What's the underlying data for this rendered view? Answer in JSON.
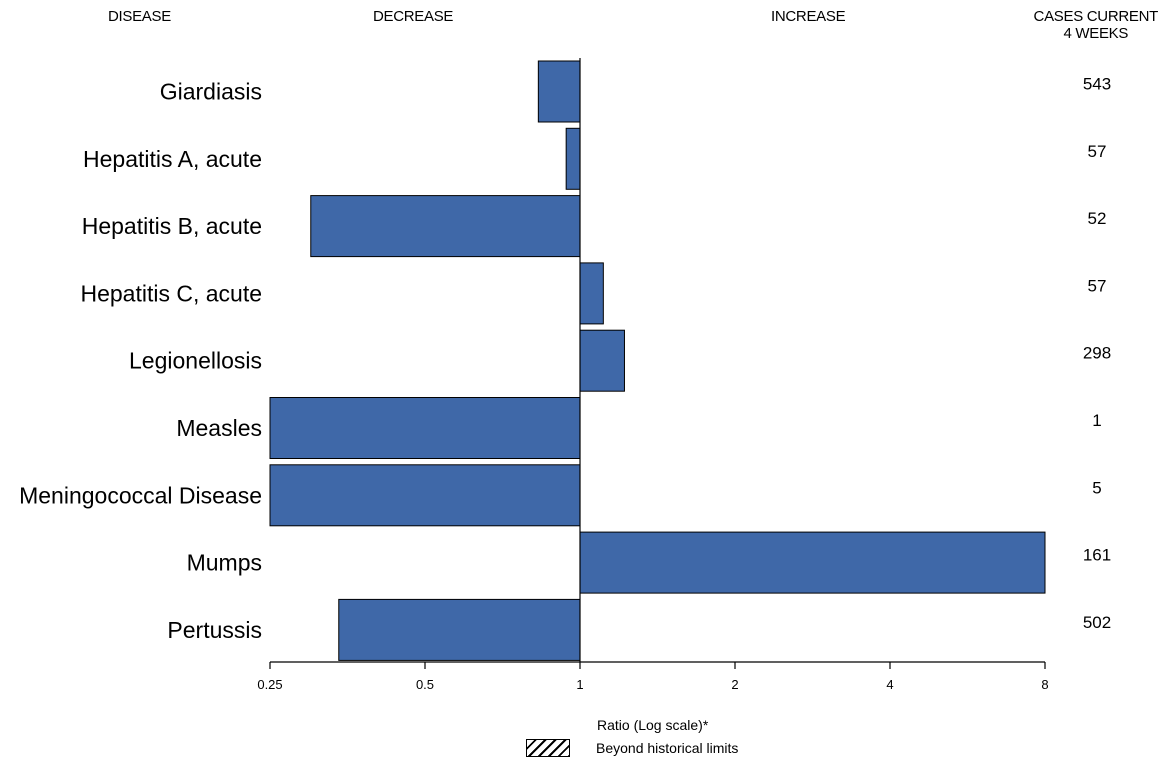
{
  "headers": {
    "disease": "DISEASE",
    "decrease": "DECREASE",
    "increase": "INCREASE",
    "cases_line1": "CASES CURRENT",
    "cases_line2": "4 WEEKS"
  },
  "chart_data": {
    "type": "bar",
    "orientation": "horizontal",
    "scale": "log",
    "baseline": 1,
    "xlim": [
      0.25,
      8
    ],
    "ticks": [
      0.25,
      0.5,
      1,
      2,
      4,
      8
    ],
    "tick_labels": [
      "0.25",
      "0.5",
      "1",
      "2",
      "4",
      "8"
    ],
    "xlabel": "Ratio (Log scale)*",
    "bar_color": "#3f68a8",
    "categories": [
      "Giardiasis",
      "Hepatitis A, acute",
      "Hepatitis B, acute",
      "Hepatitis C, acute",
      "Legionellosis",
      "Measles",
      "Meningococcal Disease",
      "Mumps",
      "Pertussis"
    ],
    "values": [
      0.83,
      0.94,
      0.3,
      1.11,
      1.22,
      0.25,
      0.25,
      8.0,
      0.34
    ],
    "cases": [
      "543",
      "57",
      "52",
      "57",
      "298",
      "1",
      "5",
      "161",
      "502"
    ],
    "legend": [
      {
        "label": "Beyond historical limits",
        "pattern": "hatched"
      }
    ]
  }
}
